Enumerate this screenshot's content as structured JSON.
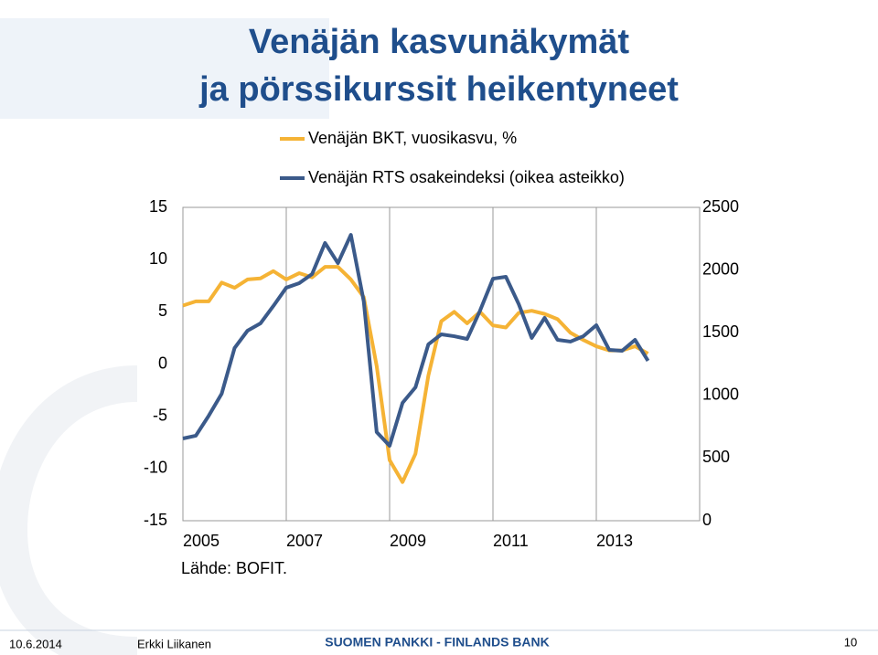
{
  "chart_data": {
    "type": "line",
    "title": [
      "Venäjän kasvunäkymät",
      "ja pörssikurssit heikentyneet"
    ],
    "source": "Lähde: BOFIT.",
    "x": [
      2005,
      2005.25,
      2005.5,
      2005.75,
      2006,
      2006.25,
      2006.5,
      2006.75,
      2007,
      2007.25,
      2007.5,
      2007.75,
      2008,
      2008.25,
      2008.5,
      2008.75,
      2009,
      2009.25,
      2009.5,
      2009.75,
      2010,
      2010.25,
      2010.5,
      2010.75,
      2011,
      2011.25,
      2011.5,
      2011.75,
      2012,
      2012.25,
      2012.5,
      2012.75,
      2013,
      2013.25,
      2013.5,
      2013.75,
      2014
    ],
    "xlim": [
      2005,
      2015
    ],
    "xticks": [
      2005,
      2007,
      2009,
      2011,
      2013
    ],
    "ylim": [
      -15,
      15
    ],
    "yticks": [
      -15,
      -10,
      -5,
      0,
      5,
      10,
      15
    ],
    "y2lim": [
      0,
      2500
    ],
    "y2ticks": [
      0,
      500,
      1000,
      1500,
      2000,
      2500
    ],
    "series": [
      {
        "name": "Venäjän BKT, vuosikasvu, %",
        "color": "#f5b335",
        "values": [
          5.6,
          6.0,
          6.0,
          7.8,
          7.3,
          8.1,
          8.2,
          8.9,
          8.1,
          8.7,
          8.3,
          9.3,
          9.3,
          8.1,
          6.4,
          -0.2,
          -9.2,
          -11.3,
          -8.6,
          -1.1,
          4.1,
          5.0,
          3.9,
          5.0,
          3.7,
          3.5,
          4.9,
          5.1,
          4.8,
          4.3,
          3.0,
          2.3,
          1.7,
          1.3,
          1.3,
          1.7,
          1.0
        ]
      },
      {
        "name": "Venäjän RTS osakeindeksi (oikea asteikko)",
        "color": "#3b5a8a",
        "axis": "y2",
        "values": [
          656,
          678,
          838,
          1013,
          1378,
          1516,
          1574,
          1713,
          1859,
          1895,
          1968,
          2216,
          2055,
          2281,
          1749,
          707,
          598,
          940,
          1064,
          1407,
          1487,
          1472,
          1450,
          1676,
          1931,
          1946,
          1727,
          1458,
          1618,
          1443,
          1429,
          1472,
          1560,
          1363,
          1356,
          1443,
          1276
        ]
      }
    ]
  },
  "footer": {
    "date": "10.6.2014",
    "author": "Erkki Liikanen",
    "organization": "SUOMEN PANKKI - FINLANDS BANK",
    "page": "10"
  }
}
